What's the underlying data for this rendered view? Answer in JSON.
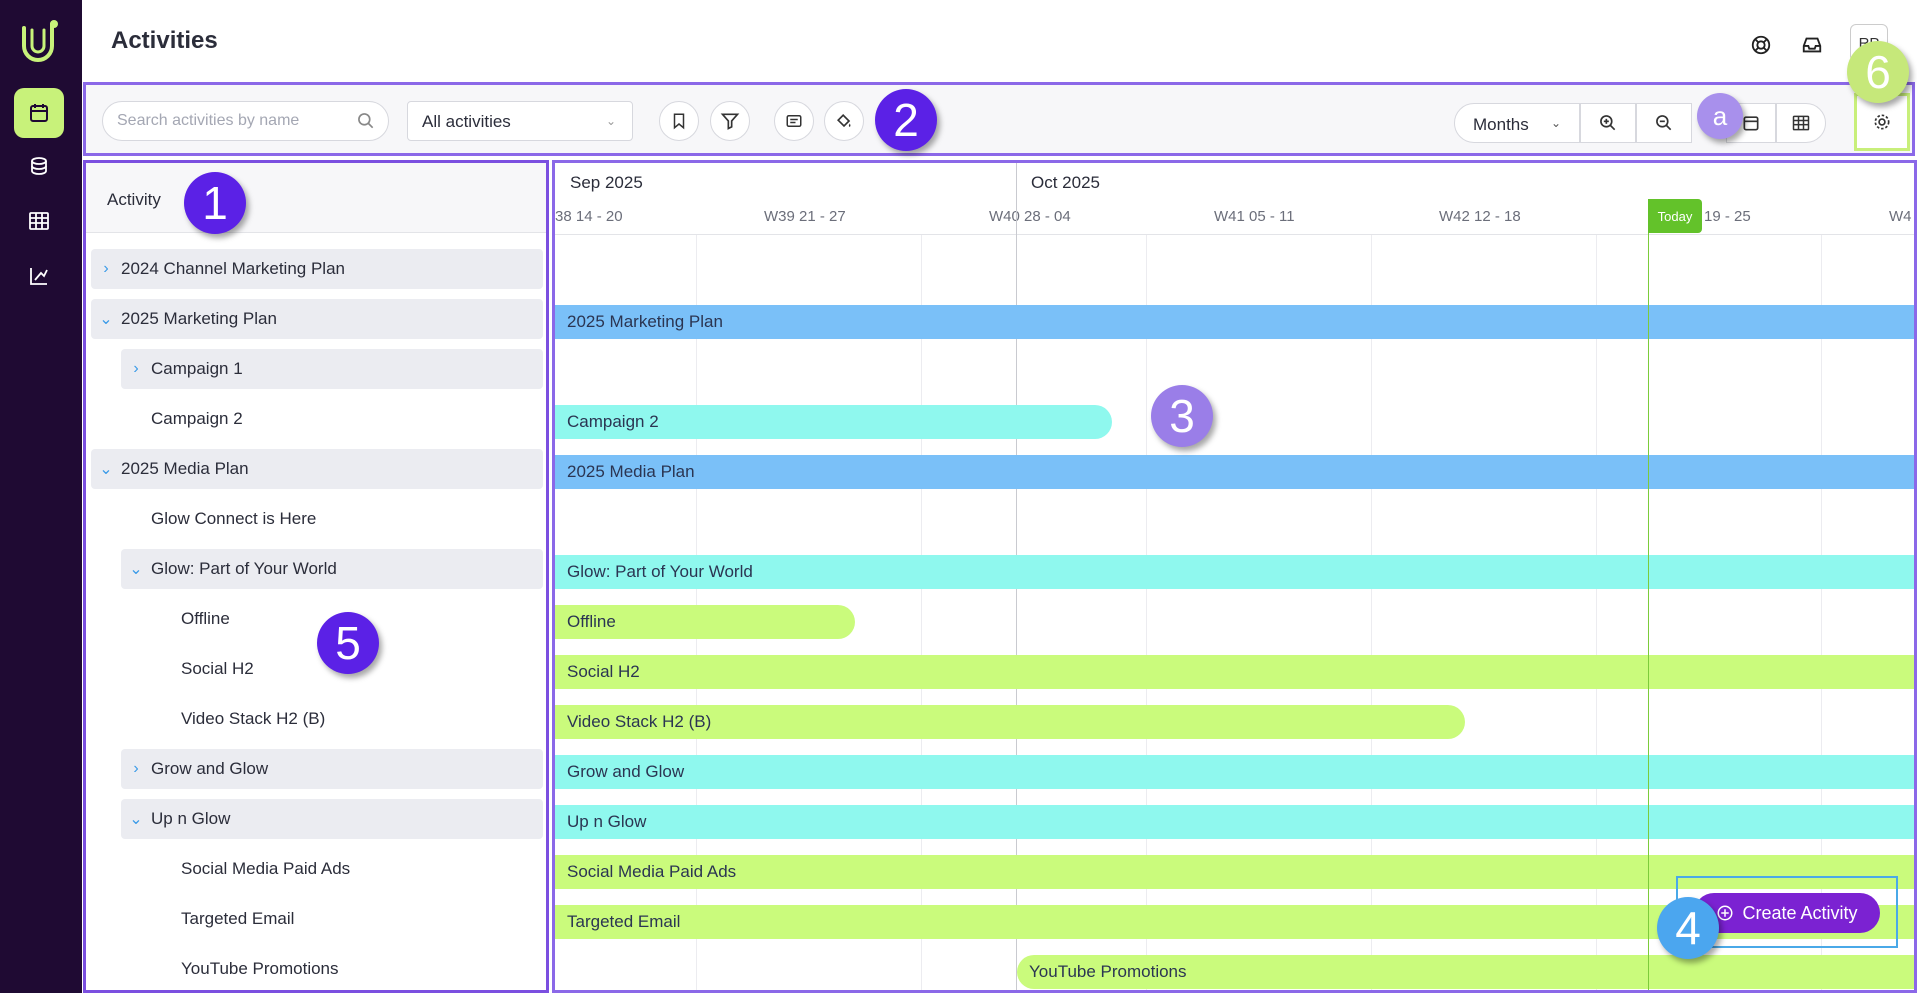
{
  "header": {
    "title": "Activities",
    "avatar_text": "RP"
  },
  "toolbar": {
    "search_placeholder": "Search activities by name",
    "filter_select": "All activities",
    "view_select": "Months"
  },
  "tree": {
    "column_header": "Activity",
    "rows": [
      {
        "label": "2024 Channel Marketing Plan",
        "caret": "›"
      },
      {
        "label": "2025 Marketing Plan",
        "caret": "⌄"
      },
      {
        "label": "Campaign 1",
        "caret": "›"
      },
      {
        "label": "Campaign 2"
      },
      {
        "label": "2025 Media Plan",
        "caret": "⌄"
      },
      {
        "label": "Glow Connect is Here"
      },
      {
        "label": "Glow: Part of Your World",
        "caret": "⌄"
      },
      {
        "label": "Offline"
      },
      {
        "label": "Social H2"
      },
      {
        "label": "Video Stack H2 (B)"
      },
      {
        "label": "Grow and Glow",
        "caret": "›"
      },
      {
        "label": "Up n Glow",
        "caret": "⌄"
      },
      {
        "label": "Social Media Paid Ads"
      },
      {
        "label": "Targeted Email"
      },
      {
        "label": "YouTube Promotions"
      }
    ]
  },
  "timeline": {
    "months": [
      "Sep 2025",
      "Oct 2025"
    ],
    "weeks": [
      "38 14 - 20",
      "W39 21 - 27",
      "W40 28 - 04",
      "W41 05 - 11",
      "W42 12 - 18",
      "19 - 25",
      "W4"
    ],
    "today_label": "Today",
    "bars": [
      "2025 Marketing Plan",
      "Campaign 2",
      "2025 Media Plan",
      "Glow: Part of Your World",
      "Offline",
      "Social H2",
      "Video Stack H2 (B)",
      "Grow and Glow",
      "Up n Glow",
      "Social Media Paid Ads",
      "Targeted Email",
      "YouTube Promotions"
    ]
  },
  "create_button": "Create Activity",
  "callouts": {
    "c1": "1",
    "c2": "2",
    "c3": "3",
    "c4": "4",
    "c5": "5",
    "c6": "6",
    "ca": "a"
  },
  "colors": {
    "rail": "#1f0a33",
    "accent_lime": "#c8f27a",
    "accent_purple": "#7b22d2",
    "bar_blue": "#7ac0f8",
    "bar_cyan": "#8ff8ee",
    "bar_lime": "#cafb7c",
    "today_green": "#63c22a"
  }
}
